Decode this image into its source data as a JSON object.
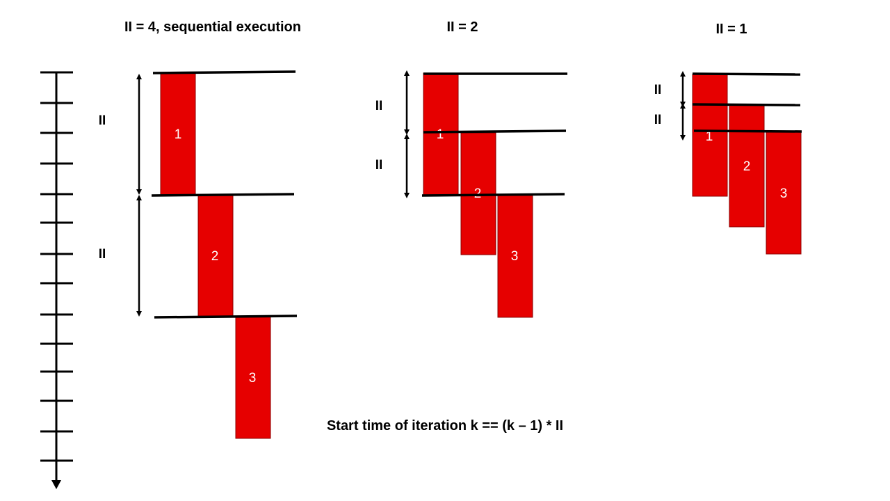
{
  "panels": [
    {
      "title": "II = 4, sequential execution",
      "interval_label": "II",
      "iterations": [
        "1",
        "2",
        "3"
      ]
    },
    {
      "title": "II = 2",
      "interval_label": "II",
      "iterations": [
        "1",
        "2",
        "3"
      ]
    },
    {
      "title": "II = 1",
      "interval_label": "II",
      "iterations": [
        "1",
        "2",
        "3"
      ]
    }
  ],
  "formula": "Start time of iteration k == (k – 1) * II",
  "colors": {
    "block": "#e60000",
    "line": "#000000",
    "label": "#ffffff"
  }
}
